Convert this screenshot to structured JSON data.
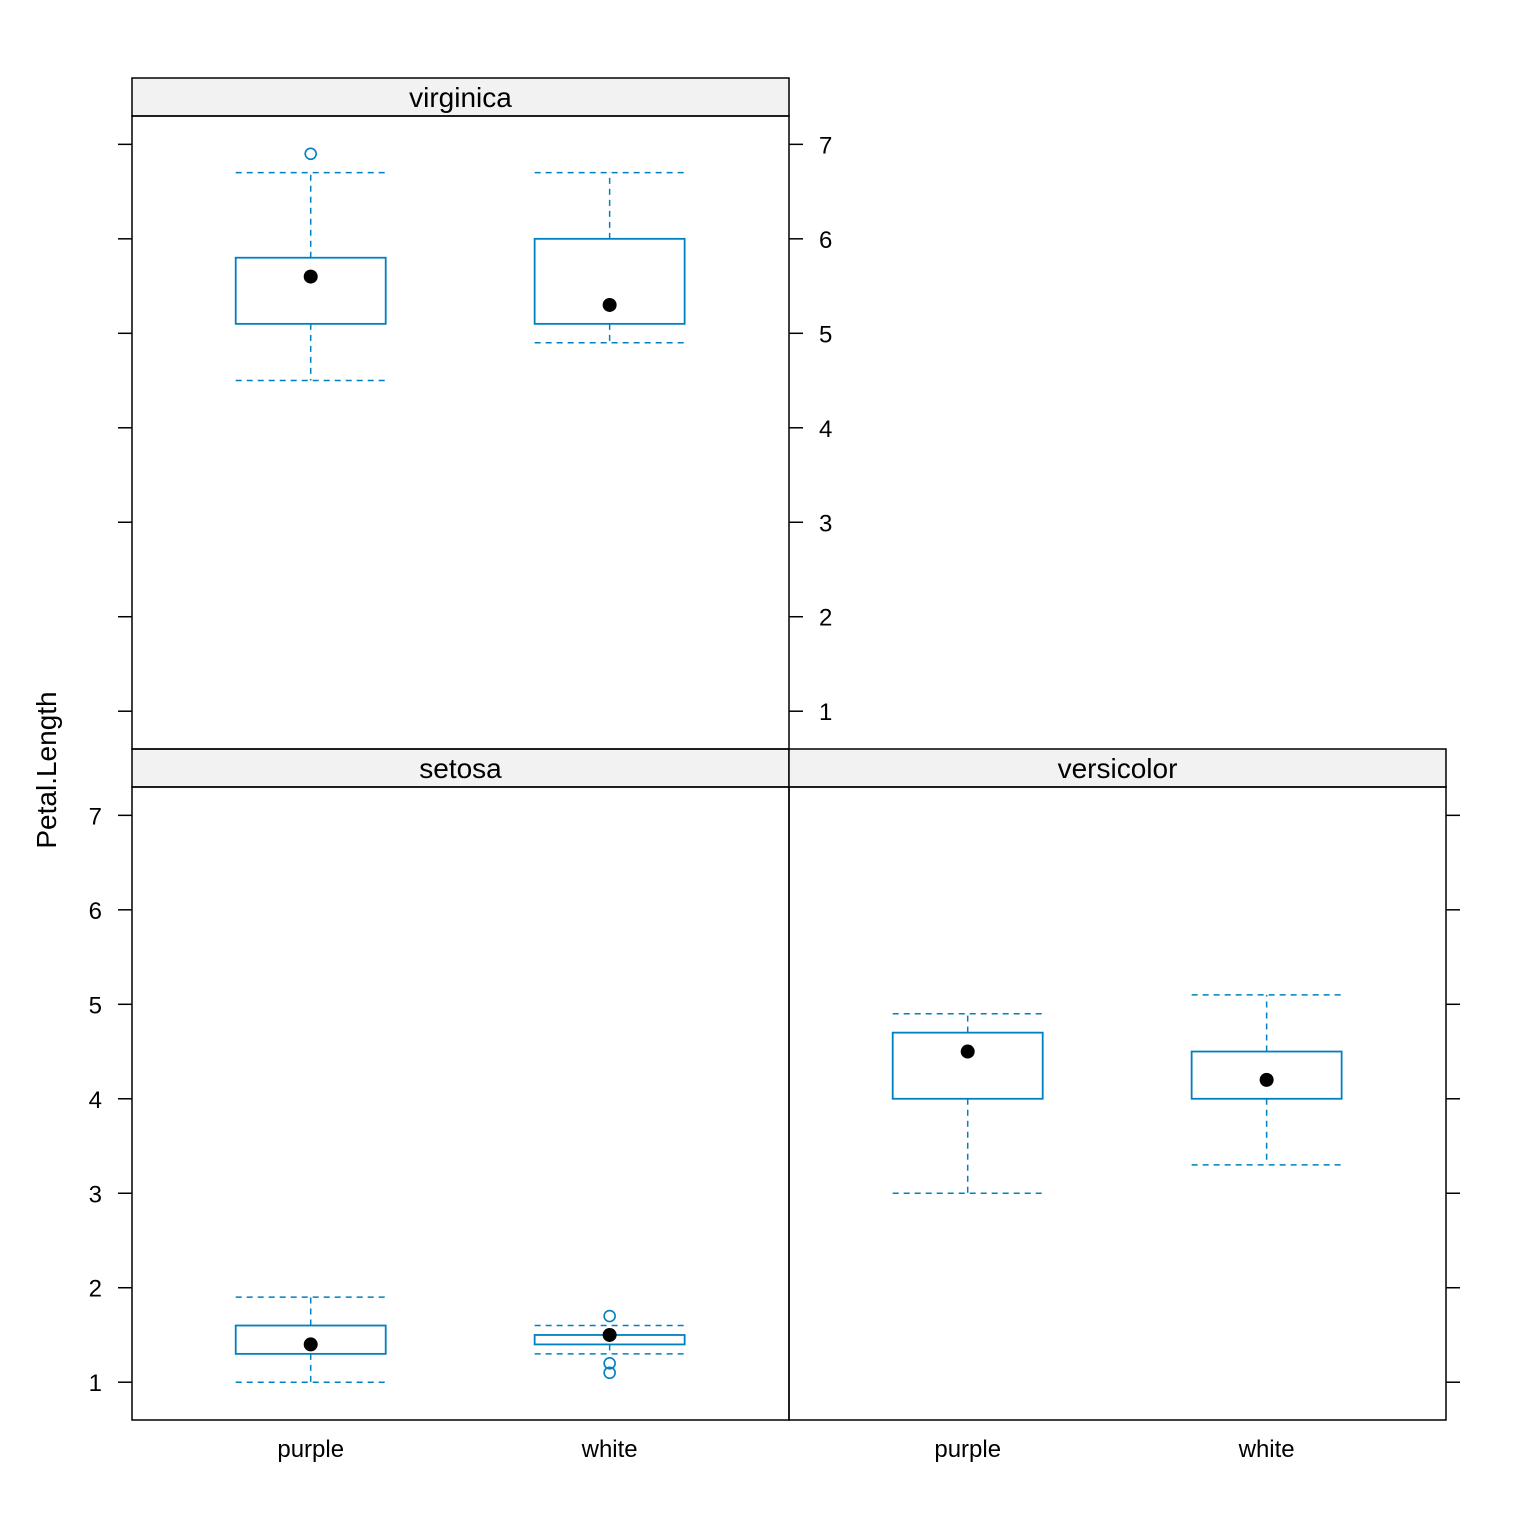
{
  "chart_data": {
    "type": "boxplot",
    "ylabel": "Petal.Length",
    "xlabel": "",
    "ylim": [
      0.6,
      7.3
    ],
    "yticks": [
      1,
      2,
      3,
      4,
      5,
      6,
      7
    ],
    "categories": [
      "purple",
      "white"
    ],
    "colors": {
      "box": "#0080C0",
      "median_dot": "#000000",
      "strip_background": "#F2F2F2",
      "panel_border": "#000000"
    },
    "panels": [
      {
        "name": "setosa",
        "boxes": [
          {
            "category": "purple",
            "whisker_low": 1.0,
            "q1": 1.3,
            "median": 1.4,
            "q3": 1.6,
            "whisker_high": 1.9,
            "outliers": []
          },
          {
            "category": "white",
            "whisker_low": 1.3,
            "q1": 1.4,
            "median": 1.5,
            "q3": 1.5,
            "whisker_high": 1.6,
            "outliers": [
              1.7,
              1.2,
              1.1
            ]
          }
        ]
      },
      {
        "name": "versicolor",
        "boxes": [
          {
            "category": "purple",
            "whisker_low": 3.0,
            "q1": 4.0,
            "median": 4.5,
            "q3": 4.7,
            "whisker_high": 4.9,
            "outliers": []
          },
          {
            "category": "white",
            "whisker_low": 3.3,
            "q1": 4.0,
            "median": 4.2,
            "q3": 4.5,
            "whisker_high": 5.1,
            "outliers": []
          }
        ]
      },
      {
        "name": "virginica",
        "boxes": [
          {
            "category": "purple",
            "whisker_low": 4.5,
            "q1": 5.1,
            "median": 5.6,
            "q3": 5.8,
            "whisker_high": 6.7,
            "outliers": [
              6.9
            ]
          },
          {
            "category": "white",
            "whisker_low": 4.9,
            "q1": 5.1,
            "median": 5.3,
            "q3": 6.0,
            "whisker_high": 6.7,
            "outliers": []
          }
        ]
      }
    ]
  }
}
